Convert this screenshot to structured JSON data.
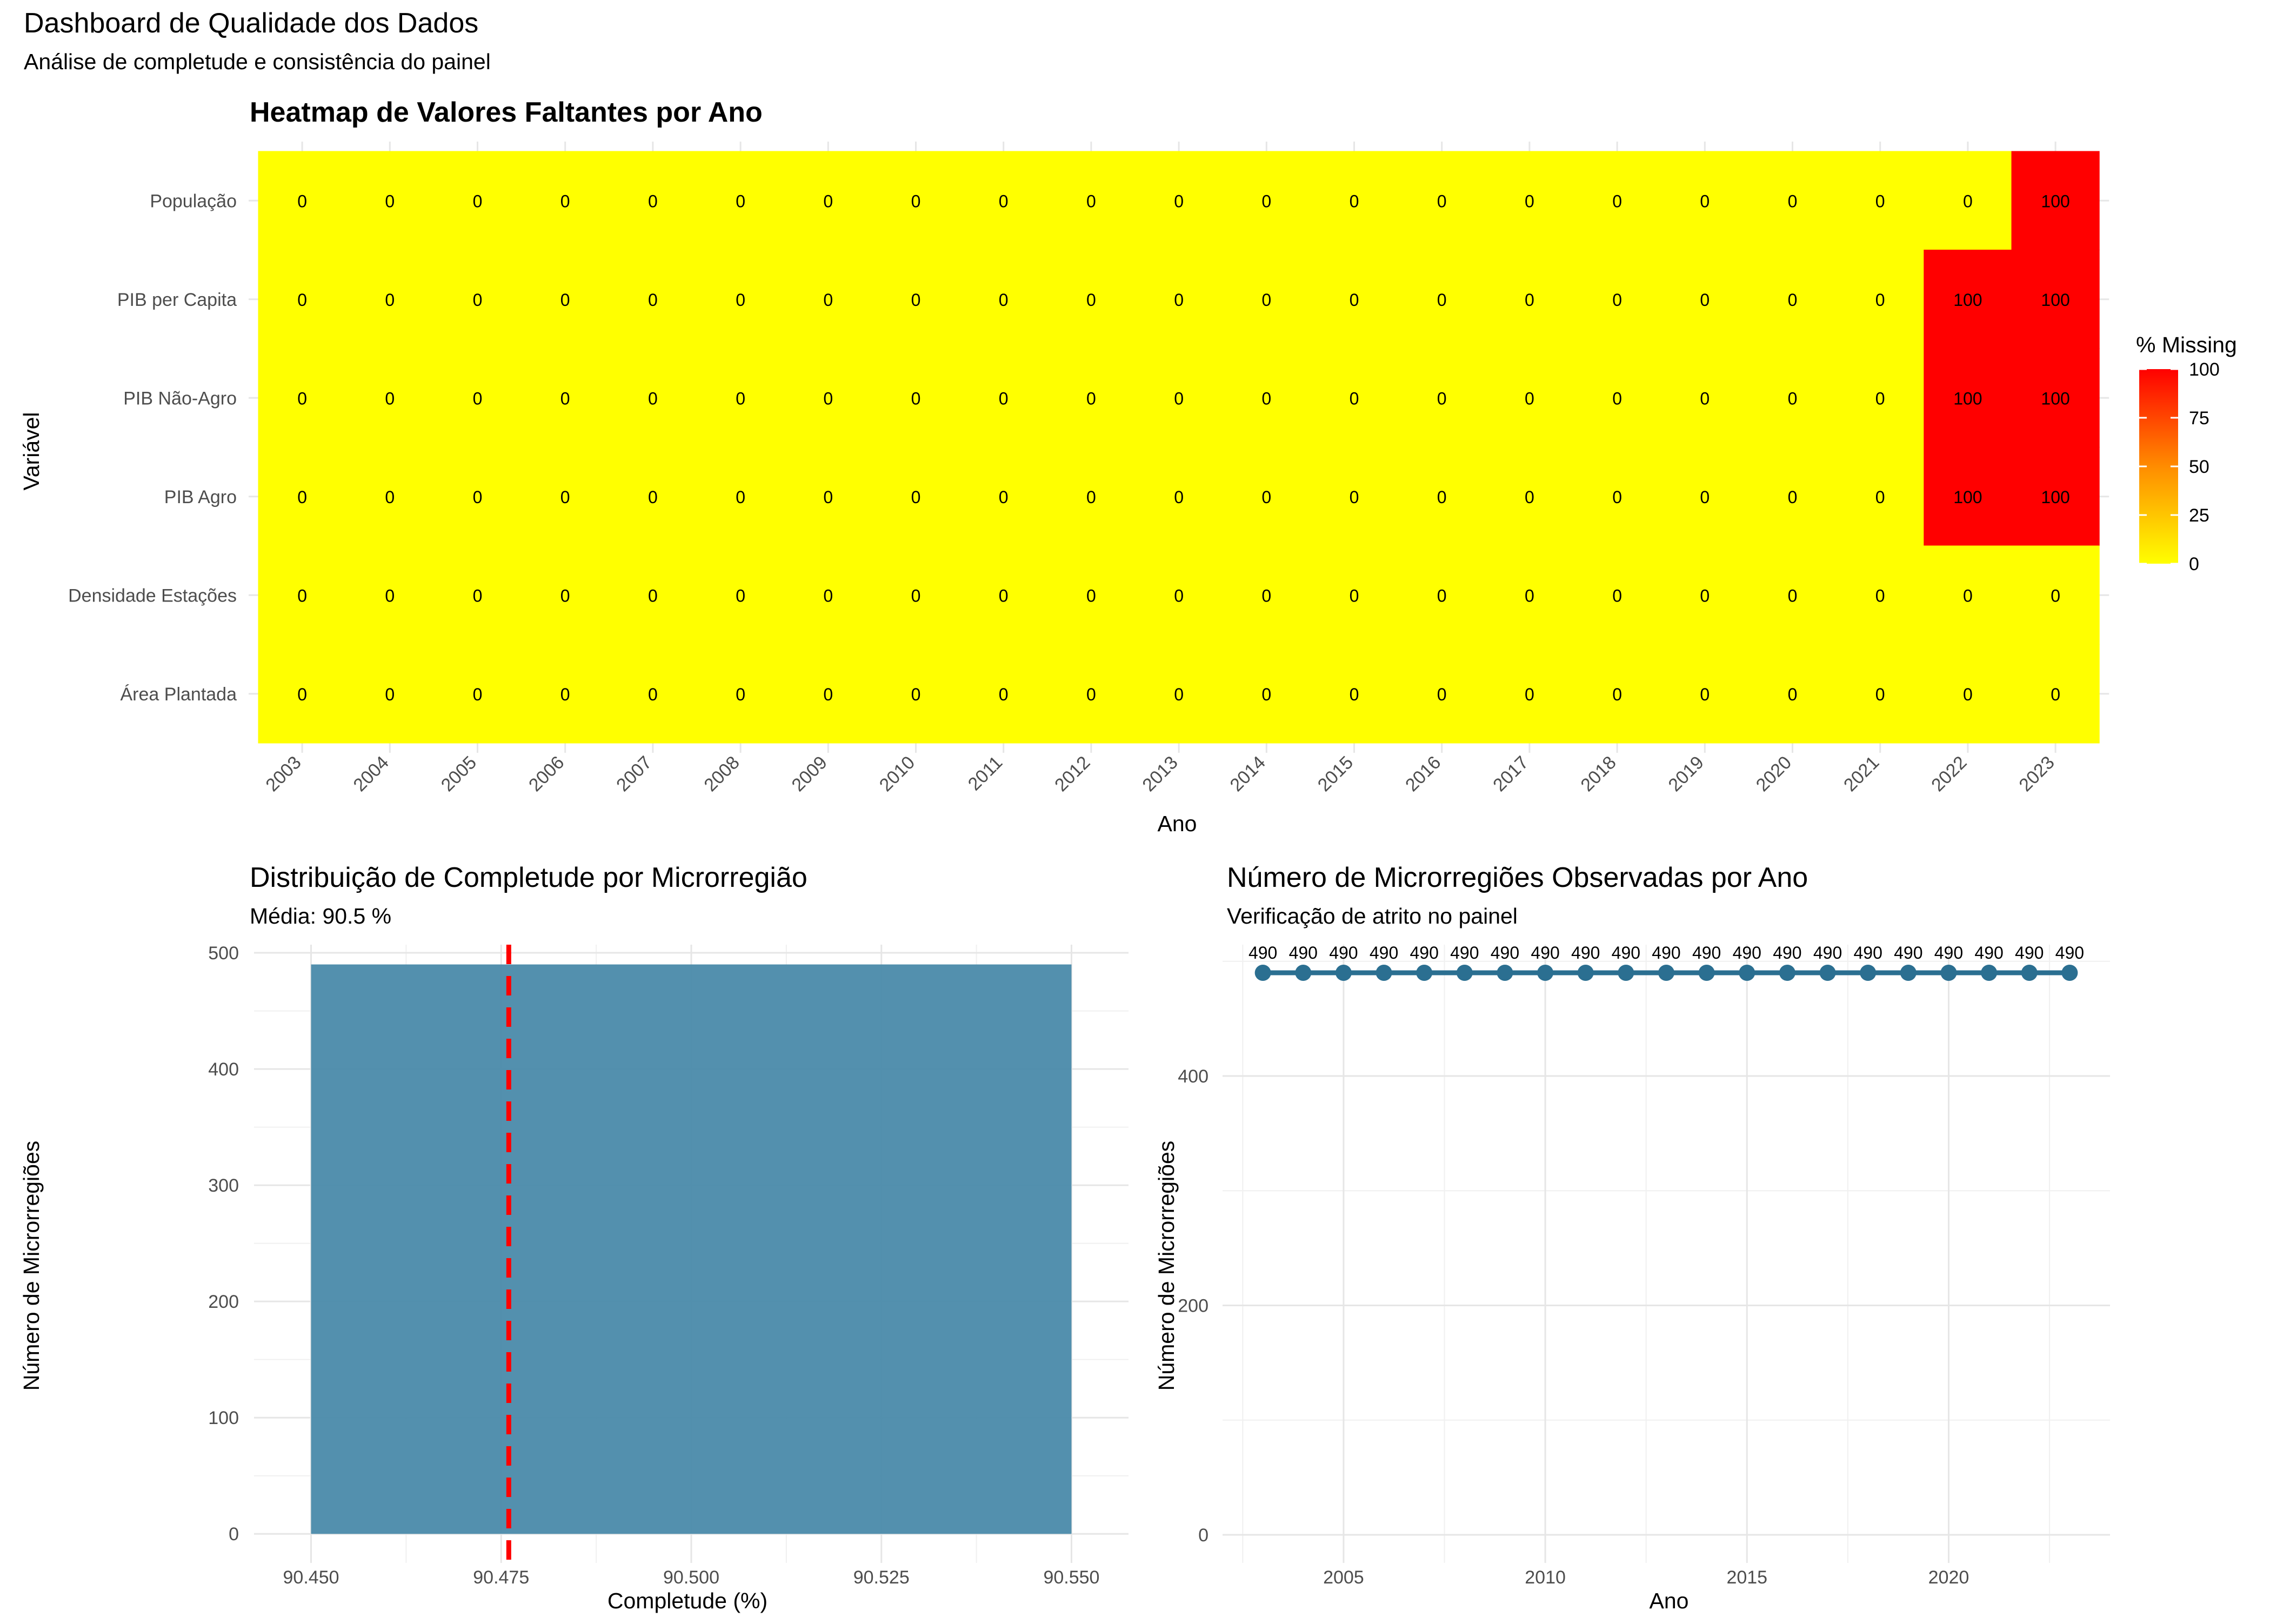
{
  "dashboard": {
    "title": "Dashboard de Qualidade dos Dados",
    "subtitle": "Análise de completude e consistência do painel"
  },
  "chart_data": [
    {
      "type": "heatmap",
      "title": "Heatmap de Valores Faltantes por Ano",
      "xlabel": "Ano",
      "ylabel": "Variável",
      "x": [
        "2003",
        "2004",
        "2005",
        "2006",
        "2007",
        "2008",
        "2009",
        "2010",
        "2011",
        "2012",
        "2013",
        "2014",
        "2015",
        "2016",
        "2017",
        "2018",
        "2019",
        "2020",
        "2021",
        "2022",
        "2023"
      ],
      "y": [
        "População",
        "PIB per Capita",
        "PIB Não-Agro",
        "PIB Agro",
        "Densidade Estações",
        "Área Plantada"
      ],
      "values": [
        [
          0,
          0,
          0,
          0,
          0,
          0,
          0,
          0,
          0,
          0,
          0,
          0,
          0,
          0,
          0,
          0,
          0,
          0,
          0,
          0,
          100
        ],
        [
          0,
          0,
          0,
          0,
          0,
          0,
          0,
          0,
          0,
          0,
          0,
          0,
          0,
          0,
          0,
          0,
          0,
          0,
          0,
          100,
          100
        ],
        [
          0,
          0,
          0,
          0,
          0,
          0,
          0,
          0,
          0,
          0,
          0,
          0,
          0,
          0,
          0,
          0,
          0,
          0,
          0,
          100,
          100
        ],
        [
          0,
          0,
          0,
          0,
          0,
          0,
          0,
          0,
          0,
          0,
          0,
          0,
          0,
          0,
          0,
          0,
          0,
          0,
          0,
          100,
          100
        ],
        [
          0,
          0,
          0,
          0,
          0,
          0,
          0,
          0,
          0,
          0,
          0,
          0,
          0,
          0,
          0,
          0,
          0,
          0,
          0,
          0,
          0
        ],
        [
          0,
          0,
          0,
          0,
          0,
          0,
          0,
          0,
          0,
          0,
          0,
          0,
          0,
          0,
          0,
          0,
          0,
          0,
          0,
          0,
          0
        ]
      ],
      "legend": {
        "title": "% Missing",
        "ticks": [
          0,
          25,
          50,
          75,
          100
        ],
        "low_color": "#ffff00",
        "mid_color": "#ff8c00",
        "high_color": "#ff0000",
        "placement": "right"
      }
    },
    {
      "type": "bar",
      "title": "Distribuição de Completude por Microrregião",
      "subtitle": "Média: 90.5 %",
      "xlabel": "Completude (%)",
      "ylabel": "Número de Microrregiões",
      "xlim": [
        90.4425,
        90.5575
      ],
      "ylim": [
        -25,
        507
      ],
      "x_ticks": [
        "90.450",
        "90.475",
        "90.500",
        "90.525",
        "90.550"
      ],
      "y_ticks": [
        0,
        100,
        200,
        300,
        400,
        500
      ],
      "bins": [
        {
          "x_start": 90.45,
          "x_end": 90.55,
          "count": 490
        }
      ],
      "mean_line": 90.476,
      "bar_color": "#4a8aaa",
      "mean_line_color": "#ff0000",
      "grid": true
    },
    {
      "type": "line",
      "title": "Número de Microrregiões Observadas por Ano",
      "subtitle": "Verificação de atrito no painel",
      "xlabel": "Ano",
      "ylabel": "Número de Microrregiões",
      "xlim": [
        2002,
        2024
      ],
      "ylim": [
        -24.5,
        514.5
      ],
      "x_ticks": [
        2005,
        2010,
        2015,
        2020
      ],
      "y_ticks": [
        0,
        200,
        400
      ],
      "x": [
        2003,
        2004,
        2005,
        2006,
        2007,
        2008,
        2009,
        2010,
        2011,
        2012,
        2013,
        2014,
        2015,
        2016,
        2017,
        2018,
        2019,
        2020,
        2021,
        2022,
        2023
      ],
      "values": [
        490,
        490,
        490,
        490,
        490,
        490,
        490,
        490,
        490,
        490,
        490,
        490,
        490,
        490,
        490,
        490,
        490,
        490,
        490,
        490,
        490
      ],
      "line_color": "#2b6f91",
      "grid": true
    }
  ]
}
